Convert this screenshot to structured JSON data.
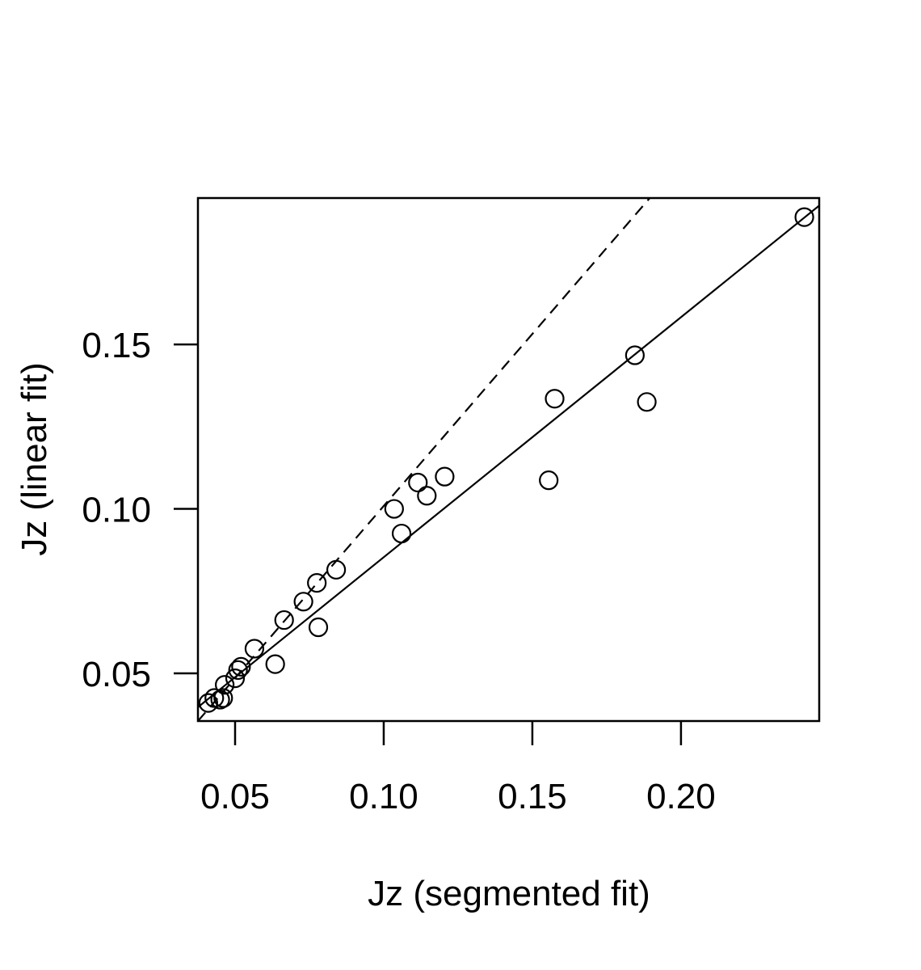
{
  "chart_data": {
    "type": "scatter",
    "title": "",
    "xlabel": "Jz (segmented fit)",
    "ylabel": "Jz (linear fit)",
    "xlim": [
      0.0375,
      0.2465
    ],
    "ylim": [
      0.0355,
      0.1945
    ],
    "x_ticks": [
      0.05,
      0.1,
      0.15,
      0.2
    ],
    "x_tick_labels": [
      "0.05",
      "0.10",
      "0.15",
      "0.20"
    ],
    "y_ticks": [
      0.05,
      0.1,
      0.15
    ],
    "y_tick_labels": [
      "0.05",
      "0.10",
      "0.15"
    ],
    "grid": false,
    "legend": "none",
    "colors": {
      "points": "#000000",
      "lines": "#000000",
      "background": "#ffffff"
    },
    "points": [
      {
        "x": 0.041,
        "y": 0.041
      },
      {
        "x": 0.043,
        "y": 0.0425
      },
      {
        "x": 0.045,
        "y": 0.042
      },
      {
        "x": 0.046,
        "y": 0.0425
      },
      {
        "x": 0.0465,
        "y": 0.0465
      },
      {
        "x": 0.05,
        "y": 0.0485
      },
      {
        "x": 0.051,
        "y": 0.051
      },
      {
        "x": 0.052,
        "y": 0.052
      },
      {
        "x": 0.0565,
        "y": 0.0575
      },
      {
        "x": 0.0635,
        "y": 0.0528
      },
      {
        "x": 0.0665,
        "y": 0.0662
      },
      {
        "x": 0.073,
        "y": 0.0718
      },
      {
        "x": 0.0775,
        "y": 0.0775
      },
      {
        "x": 0.078,
        "y": 0.064
      },
      {
        "x": 0.084,
        "y": 0.0815
      },
      {
        "x": 0.1035,
        "y": 0.1
      },
      {
        "x": 0.106,
        "y": 0.0925
      },
      {
        "x": 0.1115,
        "y": 0.108
      },
      {
        "x": 0.1145,
        "y": 0.104
      },
      {
        "x": 0.1205,
        "y": 0.1098
      },
      {
        "x": 0.1555,
        "y": 0.1087
      },
      {
        "x": 0.1575,
        "y": 0.1335
      },
      {
        "x": 0.1845,
        "y": 0.1467
      },
      {
        "x": 0.1885,
        "y": 0.1325
      },
      {
        "x": 0.2415,
        "y": 0.1887
      }
    ],
    "lines": [
      {
        "style": "dashed",
        "x": [
          0.0375,
          0.1895
        ],
        "y": [
          0.0355,
          0.1945
        ]
      },
      {
        "style": "solid",
        "x": [
          0.0375,
          0.2465
        ],
        "y": [
          0.0397,
          0.1922
        ]
      }
    ]
  }
}
